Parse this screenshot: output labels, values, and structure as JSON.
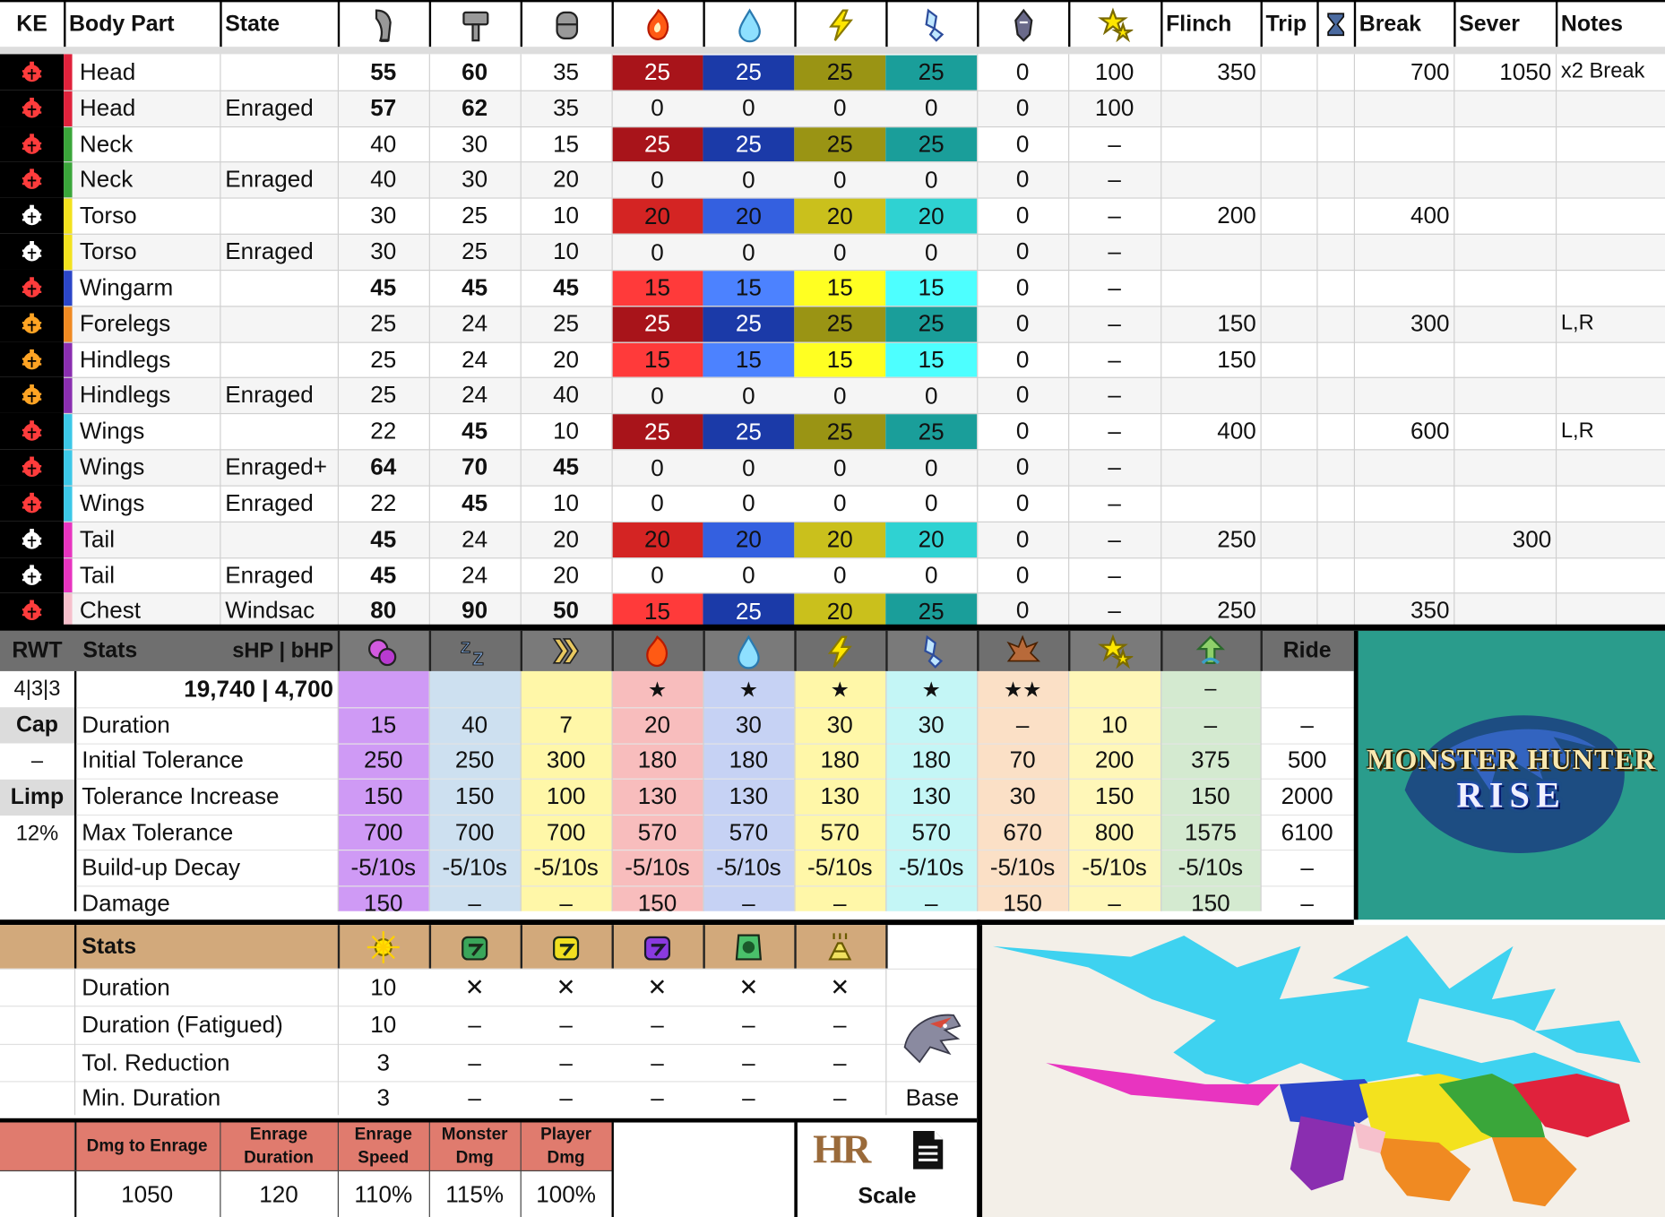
{
  "colors": {
    "fire_strong": "#a8141a",
    "fire_mid": "#d42423",
    "fire_weak": "#ff3a3a",
    "water_strong": "#1b3aa8",
    "water_mid": "#3460e0",
    "water_weak": "#4c82ff",
    "thunder_strong": "#9a9414",
    "thunder_mid": "#cac01c",
    "thunder_weak": "#ffff22",
    "ice_strong": "#1a9e9a",
    "ice_mid": "#2fd2d2",
    "ice_weak": "#4dffff",
    "status_bg": "#000000",
    "teal_panel": "#2a9c8c",
    "orange_stats": "#d2a97b",
    "salmon": "#e07b6e"
  },
  "top": {
    "headers": [
      "KE",
      "Body Part",
      "State",
      "",
      "",
      "",
      "",
      "",
      "",
      "",
      "",
      "",
      "Flinch",
      "Trip",
      "",
      "Break",
      "Sever",
      "Notes"
    ],
    "icons": [
      "sever-icon",
      "blunt-icon",
      "shot-icon",
      "fire-icon",
      "water-icon",
      "thunder-icon",
      "ice-icon",
      "dragon-icon",
      "stun-icon",
      "hourglass-icon"
    ],
    "rows": [
      {
        "ke": "red",
        "stripe": "#e0223c",
        "part": "Head",
        "state": "",
        "cut": "55",
        "blunt": "60",
        "shot": "35",
        "fire": "25",
        "water": "25",
        "thunder": "25",
        "ice": "25",
        "dragon": "0",
        "stun": "100",
        "flinch": "350",
        "trip": "",
        "hg": "",
        "brk": "700",
        "sever": "1050",
        "notes": "x2 Break",
        "bcut": true,
        "bblunt": true,
        "bshot": false,
        "e": "s"
      },
      {
        "ke": "red",
        "stripe": "#e0223c",
        "part": "Head",
        "state": "Enraged",
        "cut": "57",
        "blunt": "62",
        "shot": "35",
        "fire": "0",
        "water": "0",
        "thunder": "0",
        "ice": "0",
        "dragon": "0",
        "stun": "100",
        "flinch": "",
        "trip": "",
        "hg": "",
        "brk": "",
        "sever": "",
        "notes": "",
        "bcut": true,
        "bblunt": true,
        "bshot": false,
        "e": "z"
      },
      {
        "ke": "red",
        "stripe": "#3aa63a",
        "part": "Neck",
        "state": "",
        "cut": "40",
        "blunt": "30",
        "shot": "15",
        "fire": "25",
        "water": "25",
        "thunder": "25",
        "ice": "25",
        "dragon": "0",
        "stun": "–",
        "flinch": "",
        "trip": "",
        "hg": "",
        "brk": "",
        "sever": "",
        "notes": "",
        "bcut": false,
        "bblunt": false,
        "bshot": false,
        "e": "s"
      },
      {
        "ke": "red",
        "stripe": "#3aa63a",
        "part": "Neck",
        "state": "Enraged",
        "cut": "40",
        "blunt": "30",
        "shot": "20",
        "fire": "0",
        "water": "0",
        "thunder": "0",
        "ice": "0",
        "dragon": "0",
        "stun": "–",
        "flinch": "",
        "trip": "",
        "hg": "",
        "brk": "",
        "sever": "",
        "notes": "",
        "bcut": false,
        "bblunt": false,
        "bshot": false,
        "e": "z"
      },
      {
        "ke": "white",
        "stripe": "#f3e21e",
        "part": "Torso",
        "state": "",
        "cut": "30",
        "blunt": "25",
        "shot": "10",
        "fire": "20",
        "water": "20",
        "thunder": "20",
        "ice": "20",
        "dragon": "0",
        "stun": "–",
        "flinch": "200",
        "trip": "",
        "hg": "",
        "brk": "400",
        "sever": "",
        "notes": "",
        "bcut": false,
        "bblunt": false,
        "bshot": false,
        "e": "m"
      },
      {
        "ke": "white",
        "stripe": "#f3e21e",
        "part": "Torso",
        "state": "Enraged",
        "cut": "30",
        "blunt": "25",
        "shot": "10",
        "fire": "0",
        "water": "0",
        "thunder": "0",
        "ice": "0",
        "dragon": "0",
        "stun": "–",
        "flinch": "",
        "trip": "",
        "hg": "",
        "brk": "",
        "sever": "",
        "notes": "",
        "bcut": false,
        "bblunt": false,
        "bshot": false,
        "e": "z"
      },
      {
        "ke": "red",
        "stripe": "#2b46c8",
        "part": "Wingarm",
        "state": "",
        "cut": "45",
        "blunt": "45",
        "shot": "45",
        "fire": "15",
        "water": "15",
        "thunder": "15",
        "ice": "15",
        "dragon": "0",
        "stun": "–",
        "flinch": "",
        "trip": "",
        "hg": "",
        "brk": "",
        "sever": "",
        "notes": "",
        "bcut": true,
        "bblunt": true,
        "bshot": true,
        "e": "w"
      },
      {
        "ke": "orange",
        "stripe": "#f08a22",
        "part": "Forelegs",
        "state": "",
        "cut": "25",
        "blunt": "24",
        "shot": "25",
        "fire": "25",
        "water": "25",
        "thunder": "25",
        "ice": "25",
        "dragon": "0",
        "stun": "–",
        "flinch": "150",
        "trip": "",
        "hg": "",
        "brk": "300",
        "sever": "",
        "notes": "L,R",
        "bcut": false,
        "bblunt": false,
        "bshot": false,
        "e": "s"
      },
      {
        "ke": "orange",
        "stripe": "#8a2eb0",
        "part": "Hindlegs",
        "state": "",
        "cut": "25",
        "blunt": "24",
        "shot": "20",
        "fire": "15",
        "water": "15",
        "thunder": "15",
        "ice": "15",
        "dragon": "0",
        "stun": "–",
        "flinch": "150",
        "trip": "",
        "hg": "",
        "brk": "",
        "sever": "",
        "notes": "",
        "bcut": false,
        "bblunt": false,
        "bshot": false,
        "e": "w"
      },
      {
        "ke": "orange",
        "stripe": "#8a2eb0",
        "part": "Hindlegs",
        "state": "Enraged",
        "cut": "25",
        "blunt": "24",
        "shot": "40",
        "fire": "0",
        "water": "0",
        "thunder": "0",
        "ice": "0",
        "dragon": "0",
        "stun": "–",
        "flinch": "",
        "trip": "",
        "hg": "",
        "brk": "",
        "sever": "",
        "notes": "",
        "bcut": false,
        "bblunt": false,
        "bshot": false,
        "e": "z"
      },
      {
        "ke": "red",
        "stripe": "#3cc8e8",
        "part": "Wings",
        "state": "",
        "cut": "22",
        "blunt": "45",
        "shot": "10",
        "fire": "25",
        "water": "25",
        "thunder": "25",
        "ice": "25",
        "dragon": "0",
        "stun": "–",
        "flinch": "400",
        "trip": "",
        "hg": "",
        "brk": "600",
        "sever": "",
        "notes": "L,R",
        "bcut": false,
        "bblunt": true,
        "bshot": false,
        "e": "s"
      },
      {
        "ke": "red",
        "stripe": "#3cc8e8",
        "part": "Wings",
        "state": "Enraged+",
        "cut": "64",
        "blunt": "70",
        "shot": "45",
        "fire": "0",
        "water": "0",
        "thunder": "0",
        "ice": "0",
        "dragon": "0",
        "stun": "–",
        "flinch": "",
        "trip": "",
        "hg": "",
        "brk": "",
        "sever": "",
        "notes": "",
        "bcut": true,
        "bblunt": true,
        "bshot": true,
        "e": "z"
      },
      {
        "ke": "red",
        "stripe": "#3cc8e8",
        "part": "Wings",
        "state": "Enraged",
        "cut": "22",
        "blunt": "45",
        "shot": "10",
        "fire": "0",
        "water": "0",
        "thunder": "0",
        "ice": "0",
        "dragon": "0",
        "stun": "–",
        "flinch": "",
        "trip": "",
        "hg": "",
        "brk": "",
        "sever": "",
        "notes": "",
        "bcut": false,
        "bblunt": true,
        "bshot": false,
        "e": "z"
      },
      {
        "ke": "white",
        "stripe": "#e834c0",
        "part": "Tail",
        "state": "",
        "cut": "45",
        "blunt": "24",
        "shot": "20",
        "fire": "20",
        "water": "20",
        "thunder": "20",
        "ice": "20",
        "dragon": "0",
        "stun": "–",
        "flinch": "250",
        "trip": "",
        "hg": "",
        "brk": "",
        "sever": "300",
        "notes": "",
        "bcut": true,
        "bblunt": false,
        "bshot": false,
        "e": "m"
      },
      {
        "ke": "white",
        "stripe": "#e834c0",
        "part": "Tail",
        "state": "Enraged",
        "cut": "45",
        "blunt": "24",
        "shot": "20",
        "fire": "0",
        "water": "0",
        "thunder": "0",
        "ice": "0",
        "dragon": "0",
        "stun": "–",
        "flinch": "",
        "trip": "",
        "hg": "",
        "brk": "",
        "sever": "",
        "notes": "",
        "bcut": true,
        "bblunt": false,
        "bshot": false,
        "e": "z"
      },
      {
        "ke": "red",
        "stripe": "#f6c0cc",
        "part": "Chest",
        "state": "Windsac",
        "cut": "80",
        "blunt": "90",
        "shot": "50",
        "fire": "15",
        "water": "25",
        "thunder": "20",
        "ice": "25",
        "dragon": "0",
        "stun": "–",
        "flinch": "250",
        "trip": "",
        "hg": "",
        "brk": "350",
        "sever": "",
        "notes": "",
        "bcut": true,
        "bblunt": true,
        "bshot": true,
        "e": "x"
      }
    ]
  },
  "mid": {
    "rwt": "RWT",
    "stats": "Stats",
    "hp": "sHP  |  bHP",
    "ride": "Ride",
    "rwt_val": "4|3|3",
    "hp_val": "19,740 | 4,700",
    "cap": "Cap",
    "dash": "–",
    "limp": "Limp",
    "limp_val": "12%",
    "stars": [
      "",
      "",
      "",
      "★",
      "★",
      "★",
      "★",
      "★★",
      "",
      "–",
      ""
    ],
    "icons": [
      "poison-icon",
      "sleep-icon",
      "paralysis-icon",
      "fireblight-icon",
      "waterblight-icon",
      "thunderblight-icon",
      "iceblight-icon",
      "blast-icon",
      "stun-icon",
      "exhaust-icon"
    ],
    "rows": [
      {
        "label": "Duration",
        "vals": [
          "15",
          "40",
          "7",
          "20",
          "30",
          "30",
          "30",
          "–",
          "10",
          "–",
          "–"
        ]
      },
      {
        "label": "Initial Tolerance",
        "vals": [
          "250",
          "250",
          "300",
          "180",
          "180",
          "180",
          "180",
          "70",
          "200",
          "375",
          "500"
        ]
      },
      {
        "label": "Tolerance Increase",
        "vals": [
          "150",
          "150",
          "100",
          "130",
          "130",
          "130",
          "130",
          "30",
          "150",
          "150",
          "2000"
        ]
      },
      {
        "label": "Max Tolerance",
        "vals": [
          "700",
          "700",
          "700",
          "570",
          "570",
          "570",
          "570",
          "670",
          "800",
          "1575",
          "6100"
        ]
      },
      {
        "label": "Build-up Decay",
        "vals": [
          "-5/10s",
          "-5/10s",
          "-5/10s",
          "-5/10s",
          "-5/10s",
          "-5/10s",
          "-5/10s",
          "-5/10s",
          "-5/10s",
          "-5/10s",
          "–"
        ]
      },
      {
        "label": "Damage",
        "vals": [
          "150",
          "–",
          "–",
          "150",
          "–",
          "–",
          "–",
          "150",
          "–",
          "150",
          "–"
        ]
      }
    ],
    "logo_line1": "MONSTER HUNTER",
    "logo_line2": "RISE"
  },
  "trap": {
    "stats": "Stats",
    "icons": [
      "flash-bomb-icon",
      "shock-trap-icon",
      "pitfall-trap-icon",
      "sonic-icon",
      "pitfall-green-icon",
      "dung-icon"
    ],
    "rows": [
      {
        "label": "Duration",
        "vals": [
          "10",
          "✕",
          "✕",
          "✕",
          "✕",
          "✕"
        ]
      },
      {
        "label": "Duration (Fatigued)",
        "vals": [
          "10",
          "–",
          "–",
          "–",
          "–",
          "–"
        ]
      },
      {
        "label": "Tol. Reduction",
        "vals": [
          "3",
          "–",
          "–",
          "–",
          "–",
          "–"
        ]
      },
      {
        "label": "Min. Duration",
        "vals": [
          "3",
          "–",
          "–",
          "–",
          "–",
          "–"
        ]
      }
    ],
    "base": "Base"
  },
  "bottom": {
    "h": [
      "Dmg to Enrage",
      "Enrage Duration",
      "Enrage Speed",
      "Monster Dmg",
      "Player Dmg"
    ],
    "v": [
      "1050",
      "120",
      "110%",
      "115%",
      "100%"
    ],
    "hr": "HR",
    "scale": "Scale"
  }
}
